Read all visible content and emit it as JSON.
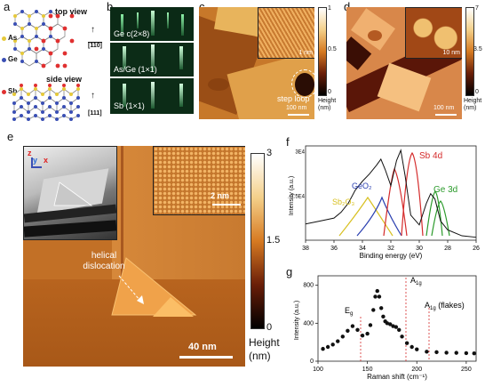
{
  "panel_a": {
    "label": "a",
    "top_view": "top view",
    "side_view": "side view",
    "dir_top": "[1̅0]",
    "dir_top_text": "[110]",
    "dir_side": "[111]",
    "legend": [
      {
        "name": "As",
        "color": "#e6c93a"
      },
      {
        "name": "Ge",
        "color": "#3a4fb4"
      },
      {
        "name": "Sb",
        "color": "#e03030"
      }
    ]
  },
  "panel_b": {
    "label": "b",
    "rows": [
      "Ge c(2×8)",
      "As/Ge (1×1)",
      "Sb (1×1)"
    ]
  },
  "panel_c": {
    "label": "c",
    "inset_scale": "1 nm",
    "annotation": "step loop",
    "scale": "100 nm",
    "cbar_max": "1",
    "cbar_mid": "0.5",
    "cbar_min": "0",
    "cbar_title": "Height (nm)"
  },
  "panel_d": {
    "label": "d",
    "inset_scale": "10 nm",
    "scale": "100 nm",
    "cbar_max": "7",
    "cbar_mid": "3.5",
    "cbar_min": "0",
    "cbar_title": "Height (nm)"
  },
  "panel_e": {
    "label": "e",
    "axes": [
      "z",
      "y",
      "x"
    ],
    "inset_scale": "2 nm",
    "annotation": "helical dislocation",
    "scale": "40 nm",
    "cbar_max": "3",
    "cbar_mid": "1.5",
    "cbar_min": "0",
    "cbar_title": "Height (nm)"
  },
  "chart_data": [
    {
      "panel": "f",
      "type": "line",
      "xlabel": "Binding energy (eV)",
      "ylabel": "Intensity (a.u.)",
      "xlim": [
        38,
        26
      ],
      "x_ticks": [
        "38",
        "36",
        "34",
        "32",
        "30",
        "28",
        "26"
      ],
      "y_ticks": [
        "1.5E4",
        "3E4"
      ],
      "annotations": [
        {
          "text": "Sb 4d",
          "color": "#d42a2a"
        },
        {
          "text": "GeO₂",
          "color": "#2a3fb0"
        },
        {
          "text": "Sb₂O₃",
          "color": "#d8c020"
        },
        {
          "text": "Ge 3d",
          "color": "#2a9a2a"
        }
      ],
      "x": [
        38,
        37,
        36,
        35.5,
        35,
        34.5,
        34,
        33.5,
        33,
        32.7,
        32.4,
        32,
        31.6,
        31.3,
        31,
        30.6,
        30,
        29.5,
        29.2,
        28.9,
        28.5,
        28,
        27,
        26
      ],
      "y": [
        5500,
        6500,
        7500,
        9500,
        12500,
        17000,
        20000,
        22500,
        25500,
        27500,
        24000,
        18500,
        27000,
        30500,
        22000,
        8500,
        5200,
        12500,
        15800,
        14000,
        6500,
        3500,
        1500,
        1000
      ]
    },
    {
      "panel": "g",
      "type": "scatter",
      "xlabel": "Raman shift (cm⁻¹)",
      "ylabel": "Intensity (a.u.)",
      "xlim": [
        100,
        260
      ],
      "ylim": [
        0,
        900
      ],
      "x_ticks": [
        "100",
        "150",
        "200",
        "250"
      ],
      "y_ticks": [
        "0",
        "400",
        "800"
      ],
      "annotations": [
        "E_g",
        "A_1g",
        "A_1g (flakes)"
      ],
      "x": [
        105,
        110,
        115,
        120,
        125,
        130,
        135,
        140,
        145,
        150,
        153,
        156,
        158,
        160,
        162,
        164,
        166,
        168,
        170,
        173,
        176,
        179,
        182,
        185,
        190,
        195,
        200,
        210,
        220,
        230,
        240,
        250,
        258
      ],
      "y": [
        130,
        150,
        175,
        210,
        260,
        320,
        370,
        330,
        270,
        290,
        380,
        540,
        680,
        740,
        680,
        560,
        470,
        420,
        400,
        390,
        370,
        360,
        330,
        260,
        190,
        150,
        125,
        100,
        95,
        90,
        88,
        85,
        83
      ]
    }
  ]
}
